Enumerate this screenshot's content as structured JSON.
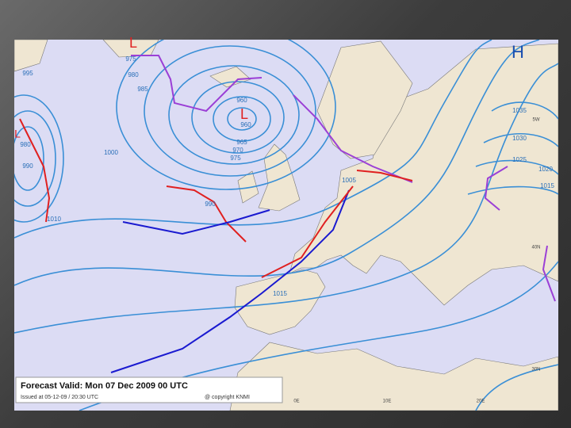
{
  "map": {
    "pressure_centers": [
      "H",
      "L",
      "L",
      "L"
    ],
    "isobar_labels": [
      "995",
      "975",
      "980",
      "985",
      "960",
      "960",
      "965",
      "970",
      "975",
      "1000",
      "980",
      "990",
      "1010",
      "990",
      "1005",
      "1015",
      "1035",
      "1030",
      "1025",
      "1020",
      "1015"
    ],
    "grid_labels": [
      "5W",
      "40N",
      "30N",
      "0E",
      "10E",
      "20E"
    ]
  },
  "footer": {
    "forecast": "Forecast Valid:  Mon 07 Dec 2009 00 UTC",
    "issued": "Issued at 05-12-09 / 20:30 UTC",
    "copyright": "@ copyright KNMI"
  }
}
